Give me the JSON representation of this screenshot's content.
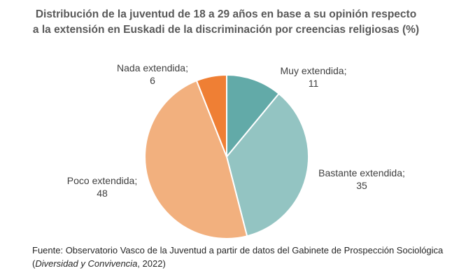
{
  "chart_data": {
    "type": "pie",
    "title": "Distribución de la juventud de 18 a 29 años en base a su opinión respecto",
    "title_line2": "a la extensión en Euskadi de la discriminación por creencias religiosas (%)",
    "slices": [
      {
        "label": "Muy extendida;",
        "value": 11,
        "value_label": "11",
        "color": "#62aaa8"
      },
      {
        "label": "Bastante extendida;",
        "value": 35,
        "value_label": "35",
        "color": "#93c4c2"
      },
      {
        "label": "Poco extendida;",
        "value": 48,
        "value_label": "48",
        "color": "#f2b07e"
      },
      {
        "label": "Nada extendida;",
        "value": 6,
        "value_label": "6",
        "color": "#ef7f34"
      }
    ],
    "legend": "none"
  },
  "source": {
    "line1": "Fuente: Observatorio Vasco de la Juventud a partir de datos del Gabinete de Prospección Sociológica",
    "open_paren": "(",
    "work": "Diversidad y Convivencia",
    "year": ", 2022)"
  }
}
